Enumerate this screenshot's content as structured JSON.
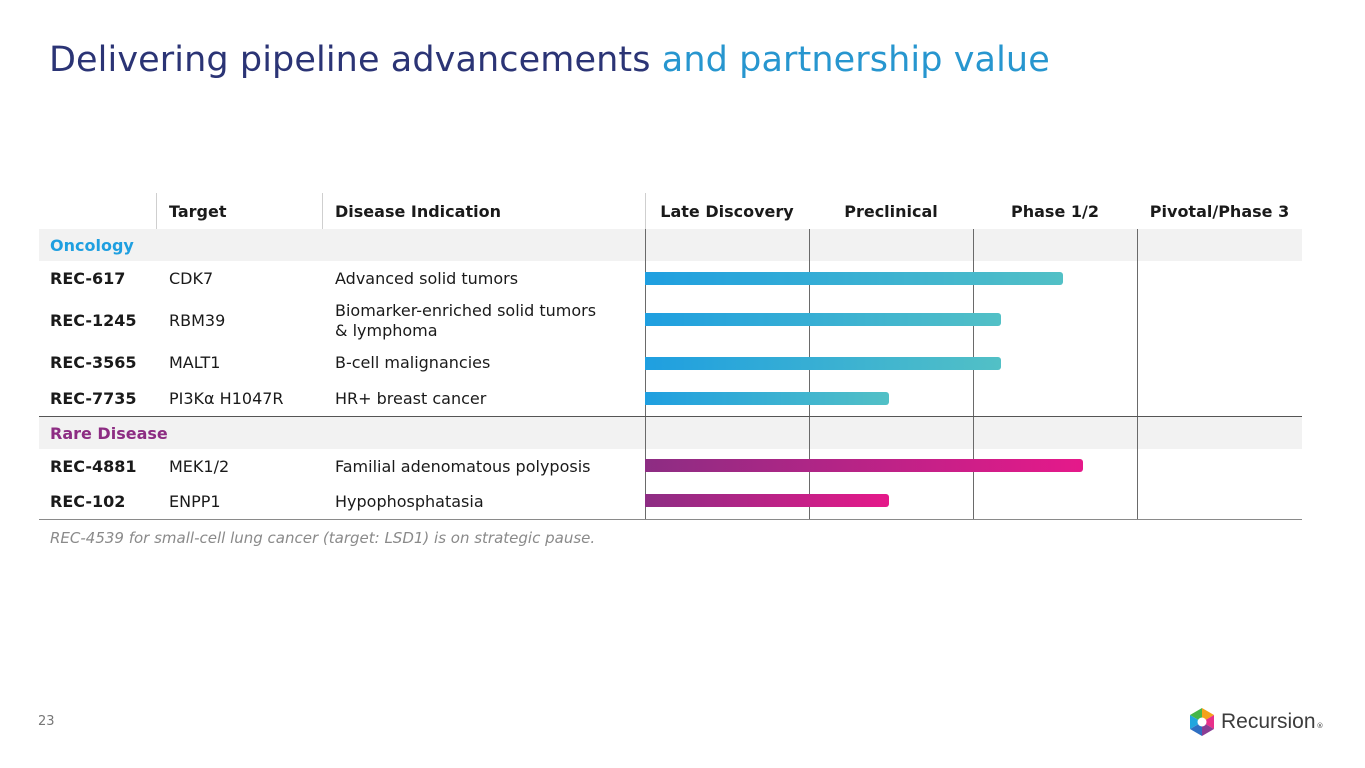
{
  "title": {
    "part1": "Delivering pipeline advancements",
    "part2": "and partnership value"
  },
  "headers": {
    "target": "Target",
    "indication": "Disease Indication",
    "phase1": "Late Discovery",
    "phase2": "Preclinical",
    "phase3": "Phase 1/2",
    "phase4": "Pivotal/Phase 3"
  },
  "groups": {
    "oncology": {
      "label": "Oncology",
      "color": "#1f9fe0"
    },
    "rare": {
      "label": "Rare Disease",
      "color": "#8d2d83"
    }
  },
  "programs": [
    {
      "name": "REC-617",
      "target": "CDK7",
      "indication": "Advanced solid tumors",
      "progress_phases": 2.55
    },
    {
      "name": "REC-1245",
      "target": "RBM39",
      "indication_line1": "Biomarker-enriched solid tumors",
      "indication_line2": "& lymphoma",
      "progress_phases": 2.17
    },
    {
      "name": "REC-3565",
      "target": "MALT1",
      "indication": "B-cell malignancies",
      "progress_phases": 2.17
    },
    {
      "name": "REC-7735",
      "target": "PI3Kα H1047R",
      "indication": "HR+ breast cancer",
      "progress_phases": 1.49
    },
    {
      "name": "REC-4881",
      "target": "MEK1/2",
      "indication": "Familial adenomatous polyposis",
      "progress_phases": 2.67
    },
    {
      "name": "REC-102",
      "target": "ENPP1",
      "indication": "Hypophosphatasia",
      "progress_phases": 1.49
    }
  ],
  "footnote": "REC-4539 for small-cell lung cancer (target: LSD1) is on strategic pause.",
  "page_number": "23",
  "logo": {
    "text": "Recursion",
    "mark": "®"
  },
  "colors": {
    "title_dark": "#2b3475",
    "title_light": "#2796cf",
    "oncology_bar": [
      "#1f9fe0",
      "#52c0c6"
    ],
    "rare_bar": [
      "#8d2d83",
      "#e5198a"
    ]
  }
}
